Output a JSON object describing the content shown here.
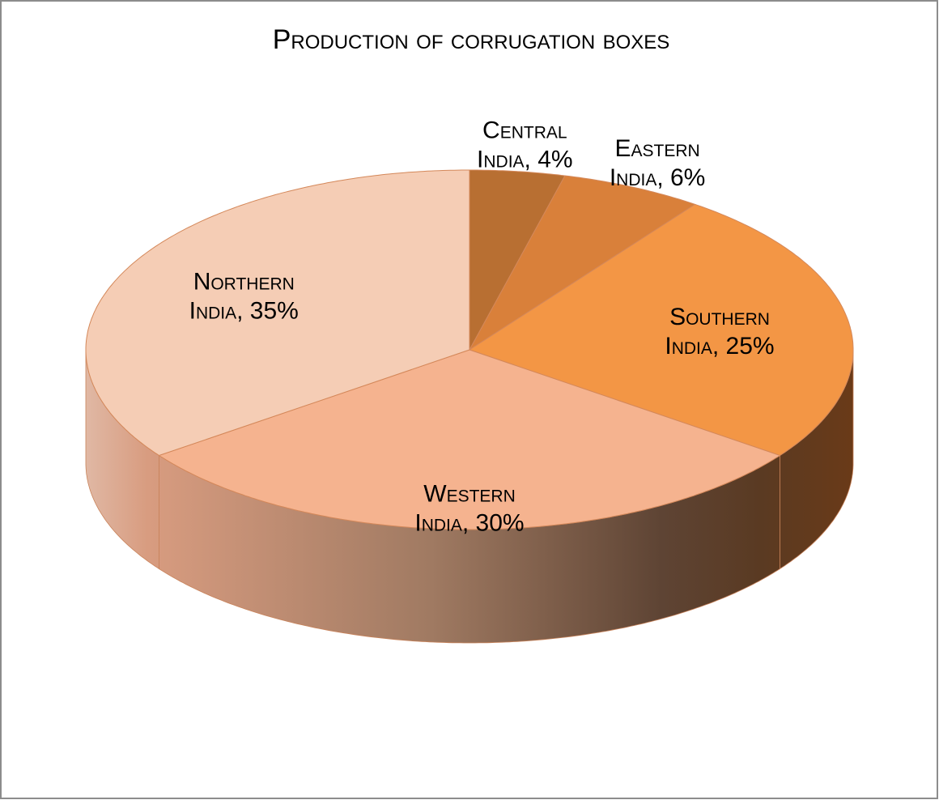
{
  "chart_data": {
    "type": "pie3d",
    "title": "Production of corrugation boxes",
    "values": [
      4,
      6,
      25,
      30,
      35
    ],
    "value_labels": [
      "Central India, 4%",
      "Eastern India, 6%",
      "Southern India, 25%",
      "Western India, 30%",
      "Northern India, 35%"
    ],
    "colors": [
      "#b86f32",
      "#d9803a",
      "#f39645",
      "#f5b38f",
      "#f5cdb5"
    ]
  }
}
